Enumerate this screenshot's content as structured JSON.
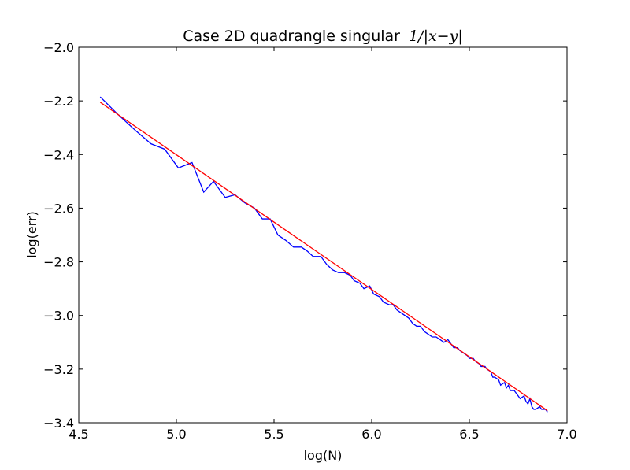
{
  "chart_data": {
    "type": "line",
    "title": "Case 2D quadrangle singular",
    "title_math": "1/|x−y|",
    "xlabel": "log(N)",
    "ylabel": "log(err)",
    "xlim": [
      4.5,
      7.0
    ],
    "ylim": [
      -3.4,
      -2.0
    ],
    "grid": false,
    "x_ticks": [
      4.5,
      5.0,
      5.5,
      6.0,
      6.5,
      7.0
    ],
    "x_tick_labels": [
      "4.5",
      "5.0",
      "5.5",
      "6.0",
      "6.5",
      "7.0"
    ],
    "y_ticks": [
      -3.4,
      -3.2,
      -3.0,
      -2.8,
      -2.6,
      -2.4,
      -2.2,
      -2.0
    ],
    "y_tick_labels": [
      "−3.4",
      "−3.2",
      "−3.0",
      "−2.8",
      "−2.6",
      "−2.4",
      "−2.2",
      "−2.0"
    ],
    "series": [
      {
        "color": "#0000ff",
        "x": [
          4.61,
          4.7,
          4.79,
          4.87,
          4.94,
          5.01,
          5.08,
          5.14,
          5.19,
          5.25,
          5.3,
          5.35,
          5.4,
          5.44,
          5.48,
          5.52,
          5.56,
          5.6,
          5.64,
          5.67,
          5.7,
          5.74,
          5.77,
          5.8,
          5.83,
          5.86,
          5.89,
          5.91,
          5.94,
          5.96,
          5.99,
          6.01,
          6.04,
          6.06,
          6.09,
          6.11,
          6.13,
          6.15,
          6.17,
          6.19,
          6.21,
          6.23,
          6.25,
          6.27,
          6.29,
          6.31,
          6.33,
          6.35,
          6.37,
          6.39,
          6.4,
          6.42,
          6.44,
          6.45,
          6.47,
          6.49,
          6.5,
          6.52,
          6.53,
          6.55,
          6.56,
          6.58,
          6.59,
          6.61,
          6.62,
          6.63,
          6.65,
          6.66,
          6.68,
          6.69,
          6.7,
          6.71,
          6.73,
          6.74,
          6.75,
          6.76,
          6.78,
          6.79,
          6.8,
          6.81,
          6.82,
          6.83,
          6.84,
          6.86,
          6.87,
          6.88,
          6.89,
          6.9
        ],
        "y": [
          -2.185,
          -2.25,
          -2.31,
          -2.36,
          -2.38,
          -2.45,
          -2.43,
          -2.54,
          -2.5,
          -2.56,
          -2.55,
          -2.58,
          -2.6,
          -2.64,
          -2.64,
          -2.7,
          -2.72,
          -2.745,
          -2.745,
          -2.76,
          -2.78,
          -2.78,
          -2.81,
          -2.83,
          -2.84,
          -2.84,
          -2.85,
          -2.87,
          -2.88,
          -2.9,
          -2.89,
          -2.92,
          -2.93,
          -2.95,
          -2.96,
          -2.96,
          -2.98,
          -2.99,
          -3.0,
          -3.01,
          -3.03,
          -3.04,
          -3.04,
          -3.06,
          -3.07,
          -3.08,
          -3.08,
          -3.09,
          -3.1,
          -3.09,
          -3.1,
          -3.12,
          -3.12,
          -3.13,
          -3.14,
          -3.15,
          -3.16,
          -3.16,
          -3.17,
          -3.18,
          -3.19,
          -3.19,
          -3.2,
          -3.21,
          -3.23,
          -3.23,
          -3.24,
          -3.26,
          -3.25,
          -3.27,
          -3.26,
          -3.28,
          -3.28,
          -3.29,
          -3.3,
          -3.31,
          -3.3,
          -3.32,
          -3.33,
          -3.31,
          -3.34,
          -3.35,
          -3.35,
          -3.34,
          -3.35,
          -3.35,
          -3.35,
          -3.36
        ]
      },
      {
        "color": "#ff0000",
        "x": [
          4.61,
          6.9
        ],
        "y": [
          -2.205,
          -3.355
        ]
      }
    ]
  }
}
